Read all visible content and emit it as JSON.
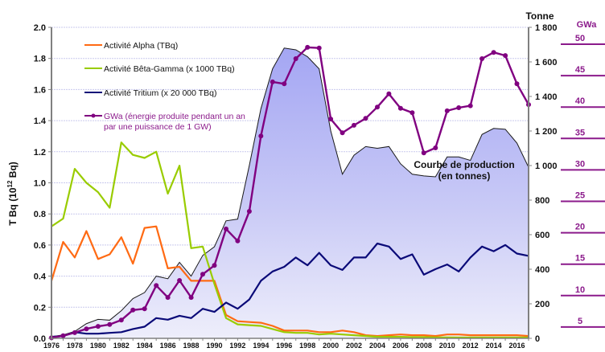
{
  "chart_data": {
    "type": "line",
    "x": [
      1976,
      1977,
      1978,
      1979,
      1980,
      1981,
      1982,
      1983,
      1984,
      1985,
      1986,
      1987,
      1988,
      1989,
      1990,
      1991,
      1992,
      1993,
      1994,
      1995,
      1996,
      1997,
      1998,
      1999,
      2000,
      2001,
      2002,
      2003,
      2004,
      2005,
      2006,
      2007,
      2008,
      2009,
      2010,
      2011,
      2012,
      2013,
      2014,
      2015,
      2016,
      2017
    ],
    "xtick_labels": [
      "1976",
      "1978",
      "1980",
      "1982",
      "1984",
      "1986",
      "1988",
      "1990",
      "1992",
      "1994",
      "1996",
      "1998",
      "2000",
      "2002",
      "2004",
      "2006",
      "2008",
      "2010",
      "2012",
      "2014",
      "2016"
    ],
    "xtick_values": [
      1976,
      1978,
      1980,
      1982,
      1984,
      1986,
      1988,
      1990,
      1992,
      1994,
      1996,
      1998,
      2000,
      2002,
      2004,
      2006,
      2008,
      2010,
      2012,
      2014,
      2016
    ],
    "xlim": [
      1976,
      2017
    ],
    "ylabel": "T Bq (10",
    "ylabel_sup": "12",
    "ylabel_end": " Bq)",
    "ylim": [
      0,
      2.0
    ],
    "ytick_labels": [
      "0.0",
      "0.2",
      "0.4",
      "0.6",
      "0.8",
      "1.0",
      "1.2",
      "1.4",
      "1.6",
      "1.8",
      "2.0"
    ],
    "ytick_values": [
      0,
      0.2,
      0.4,
      0.6,
      0.8,
      1.0,
      1.2,
      1.4,
      1.6,
      1.8,
      2.0
    ],
    "y2label": "Tonne",
    "y2lim": [
      0,
      1800
    ],
    "y2tick_labels": [
      "0",
      "200",
      "400",
      "600",
      "800",
      "1 000",
      "1 200",
      "1 400",
      "1 600",
      "1 800"
    ],
    "y2tick_values": [
      0,
      200,
      400,
      600,
      800,
      1000,
      1200,
      1400,
      1600,
      1800
    ],
    "y3label": "GWa",
    "y3tick_labels": [
      "5",
      "10",
      "15",
      "20",
      "25",
      "30",
      "35",
      "40",
      "45",
      "50"
    ],
    "y3tick_values": [
      5,
      10,
      15,
      20,
      25,
      30,
      35,
      40,
      45,
      50
    ],
    "grid": true,
    "legend_position": "top-left",
    "annotation": [
      "Courbe de production",
      "(en tonnes)"
    ],
    "series": [
      {
        "name": "Courbe de production (en tonnes)",
        "kind": "area",
        "axis": "right-tonne",
        "color": "#a9aaf4",
        "values": [
          10,
          20,
          40,
          85,
          110,
          105,
          160,
          230,
          265,
          360,
          345,
          440,
          360,
          480,
          530,
          680,
          690,
          1000,
          1330,
          1560,
          1680,
          1670,
          1630,
          1560,
          1200,
          950,
          1060,
          1110,
          1100,
          1110,
          1010,
          950,
          940,
          935,
          1050,
          1050,
          1030,
          1180,
          1215,
          1210,
          1130,
          990
        ]
      },
      {
        "name": "Activité Alpha (TBq)",
        "kind": "line",
        "axis": "left",
        "color": "#ff6a13",
        "values": [
          0.37,
          0.62,
          0.52,
          0.69,
          0.51,
          0.54,
          0.65,
          0.48,
          0.71,
          0.72,
          0.45,
          0.46,
          0.37,
          0.37,
          0.37,
          0.15,
          0.11,
          0.105,
          0.1,
          0.08,
          0.05,
          0.05,
          0.05,
          0.04,
          0.04,
          0.05,
          0.04,
          0.02,
          0.015,
          0.02,
          0.025,
          0.02,
          0.02,
          0.015,
          0.025,
          0.025,
          0.02,
          0.02,
          0.02,
          0.02,
          0.02,
          0.015
        ]
      },
      {
        "name": "Activité Bêta-Gamma (x 1000 TBq)",
        "kind": "line",
        "axis": "left",
        "color": "#99cc00",
        "values": [
          0.72,
          0.77,
          1.09,
          1.0,
          0.94,
          0.84,
          1.26,
          1.18,
          1.16,
          1.2,
          0.93,
          1.11,
          0.58,
          0.59,
          0.35,
          0.13,
          0.09,
          0.085,
          0.08,
          0.06,
          0.04,
          0.035,
          0.035,
          0.025,
          0.03,
          0.025,
          0.02,
          0.015,
          0.01,
          0.01,
          0.01,
          0.008,
          0.008,
          0.006,
          0.006,
          0.005,
          0.005,
          0.005,
          0.005,
          0.005,
          0.005,
          0.005
        ]
      },
      {
        "name": "Activité Tritium (x 20 000 TBq)",
        "kind": "line",
        "axis": "left",
        "color": "#0a0a78",
        "values": [
          0.01,
          0.015,
          0.04,
          0.03,
          0.03,
          0.035,
          0.04,
          0.06,
          0.075,
          0.13,
          0.12,
          0.145,
          0.13,
          0.19,
          0.17,
          0.23,
          0.19,
          0.25,
          0.37,
          0.43,
          0.46,
          0.52,
          0.47,
          0.55,
          0.47,
          0.44,
          0.52,
          0.52,
          0.61,
          0.59,
          0.51,
          0.54,
          0.41,
          0.445,
          0.475,
          0.43,
          0.52,
          0.59,
          0.56,
          0.6,
          0.545,
          0.53
        ]
      },
      {
        "name": "GWa (énergie produite pendant un an",
        "name_line2": "par une puissance de 1 GW)",
        "kind": "line-markers",
        "axis": "right-gwa",
        "color": "#800080",
        "values": [
          3.3,
          3.6,
          4.1,
          4.7,
          5.1,
          5.4,
          6.1,
          7.7,
          7.9,
          11.6,
          9.7,
          12.4,
          9.7,
          13.4,
          14.8,
          20.6,
          18.7,
          23.4,
          35.4,
          44.0,
          43.7,
          47.7,
          49.5,
          49.4,
          38.1,
          35.9,
          37.1,
          38.2,
          40.0,
          42.1,
          39.8,
          39.1,
          32.7,
          33.5,
          39.4,
          39.9,
          40.2,
          47.7,
          48.7,
          48.2,
          43.7,
          40.4
        ]
      }
    ]
  }
}
